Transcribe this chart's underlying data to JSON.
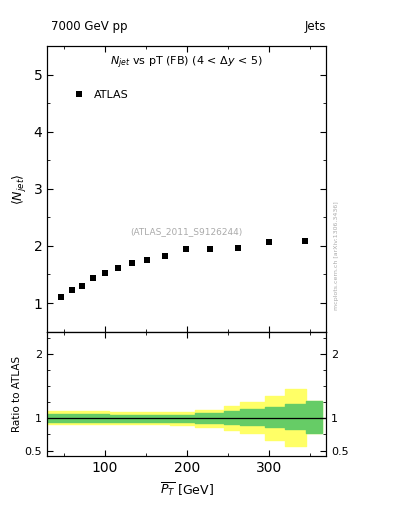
{
  "title_top_left": "7000 GeV pp",
  "title_top_right": "Jets",
  "ylabel_main": "$N_{jet}$",
  "ylabel_ratio": "Ratio to ATLAS",
  "watermark": "(ATLAS_2011_S9126244)",
  "arxiv": "mcplots.cern.ch [arXiv:1306.3436]",
  "atlas_x": [
    47,
    60,
    73,
    86,
    100,
    116,
    133,
    152,
    174,
    199,
    228,
    262,
    300,
    344
  ],
  "atlas_y": [
    1.1,
    1.23,
    1.3,
    1.43,
    1.53,
    1.62,
    1.7,
    1.75,
    1.82,
    1.94,
    1.94,
    1.96,
    2.07,
    2.09
  ],
  "green_band_x": [
    30,
    55,
    80,
    105,
    130,
    155,
    180,
    210,
    245,
    265,
    295,
    320,
    345,
    365
  ],
  "green_band_upper": [
    1.07,
    1.07,
    1.07,
    1.06,
    1.06,
    1.06,
    1.06,
    1.08,
    1.12,
    1.14,
    1.18,
    1.22,
    1.27,
    1.27
  ],
  "green_band_lower": [
    0.95,
    0.95,
    0.95,
    0.95,
    0.95,
    0.95,
    0.95,
    0.93,
    0.91,
    0.89,
    0.86,
    0.83,
    0.78,
    0.78
  ],
  "yellow_band_x": [
    30,
    55,
    80,
    105,
    130,
    155,
    180,
    210,
    245,
    265,
    295,
    320,
    345,
    365
  ],
  "yellow_band_upper": [
    1.11,
    1.11,
    1.11,
    1.1,
    1.1,
    1.1,
    1.1,
    1.13,
    1.2,
    1.25,
    1.35,
    1.45,
    1.27,
    1.27
  ],
  "yellow_band_lower": [
    0.91,
    0.91,
    0.91,
    0.91,
    0.91,
    0.91,
    0.9,
    0.87,
    0.82,
    0.77,
    0.67,
    0.57,
    0.78,
    0.78
  ],
  "main_ylim": [
    0.5,
    5.5
  ],
  "main_yticks": [
    1,
    2,
    3,
    4,
    5
  ],
  "ratio_ylim": [
    0.42,
    2.35
  ],
  "ratio_yticks": [
    0.5,
    1.0,
    2.0
  ],
  "ratio_ytick_labels": [
    "0.5",
    "1",
    "2"
  ],
  "xlim": [
    30,
    370
  ],
  "xticks": [
    100,
    200,
    300
  ],
  "marker_color": "#000000",
  "green_color": "#66cc66",
  "yellow_color": "#ffff66"
}
